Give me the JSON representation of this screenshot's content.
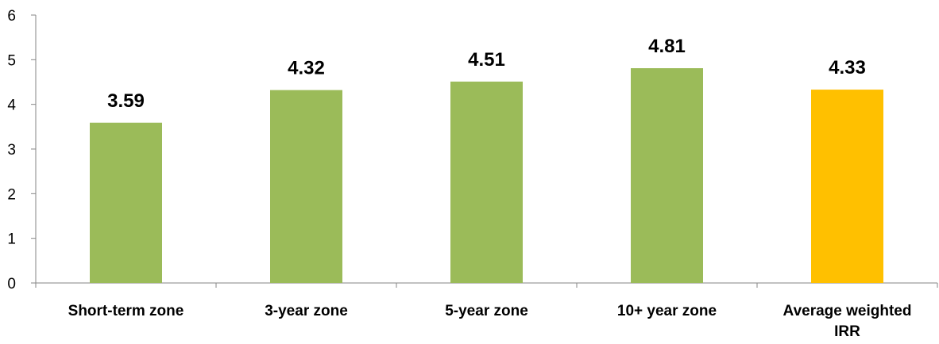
{
  "chart_data": {
    "type": "bar",
    "title": "",
    "xlabel": "",
    "ylabel": "",
    "ylim": [
      0,
      6
    ],
    "yticks": [
      0,
      1,
      2,
      3,
      4,
      5,
      6
    ],
    "grid": false,
    "legend": "none",
    "categories": [
      [
        "Short-term zone"
      ],
      [
        "3-year zone"
      ],
      [
        "5-year zone"
      ],
      [
        "10+ year zone"
      ],
      [
        "Average weighted",
        "IRR"
      ]
    ],
    "values": [
      3.59,
      4.32,
      4.51,
      4.81,
      4.33
    ],
    "data_labels": [
      "3.59",
      "4.32",
      "4.51",
      "4.81",
      "4.33"
    ],
    "colors": [
      "#9BBB59",
      "#9BBB59",
      "#9BBB59",
      "#9BBB59",
      "#FFC000"
    ]
  }
}
